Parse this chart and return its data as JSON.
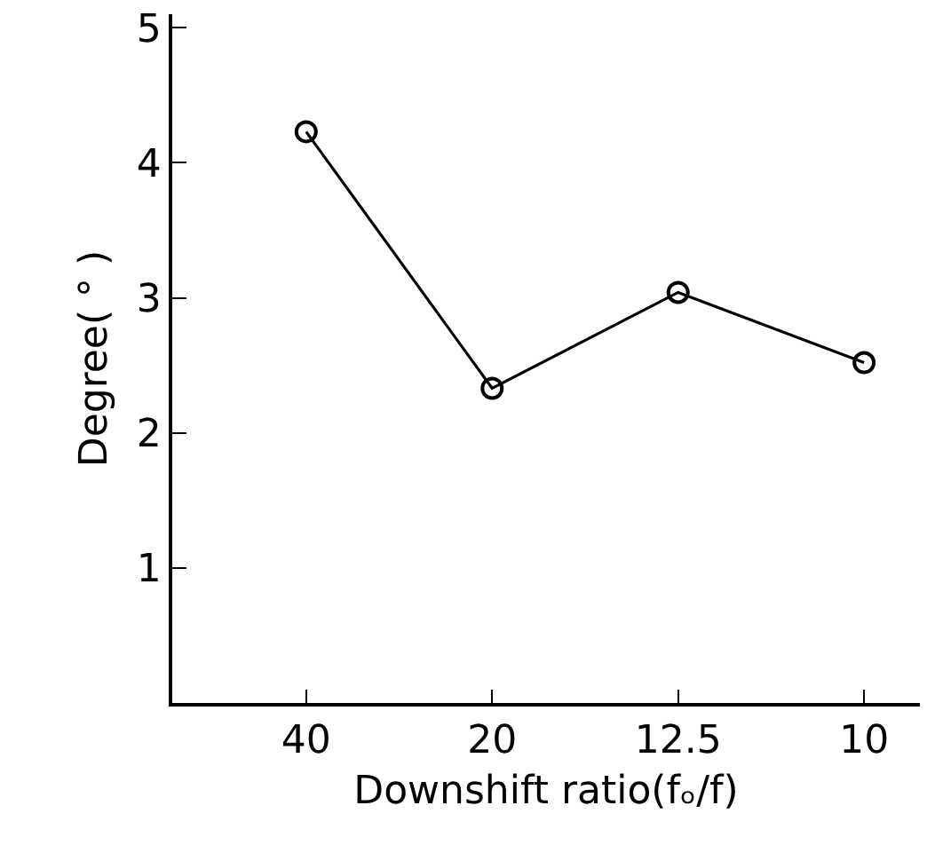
{
  "chart_data": {
    "type": "line",
    "xlabel": "Downshift ratio(fₒ/f)",
    "ylabel": "Degree( ° )",
    "categories": [
      "40",
      "20",
      "12.5",
      "10"
    ],
    "series": [
      {
        "color": "#000000",
        "values": [
          4.23,
          2.33,
          3.04,
          2.52
        ]
      }
    ],
    "ylim": [
      0,
      5.1
    ],
    "yticks": [
      {
        "value": 0,
        "label": null
      },
      1,
      2,
      3,
      4,
      5
    ],
    "grid": false,
    "marker": "circle",
    "line_style": "solid"
  }
}
